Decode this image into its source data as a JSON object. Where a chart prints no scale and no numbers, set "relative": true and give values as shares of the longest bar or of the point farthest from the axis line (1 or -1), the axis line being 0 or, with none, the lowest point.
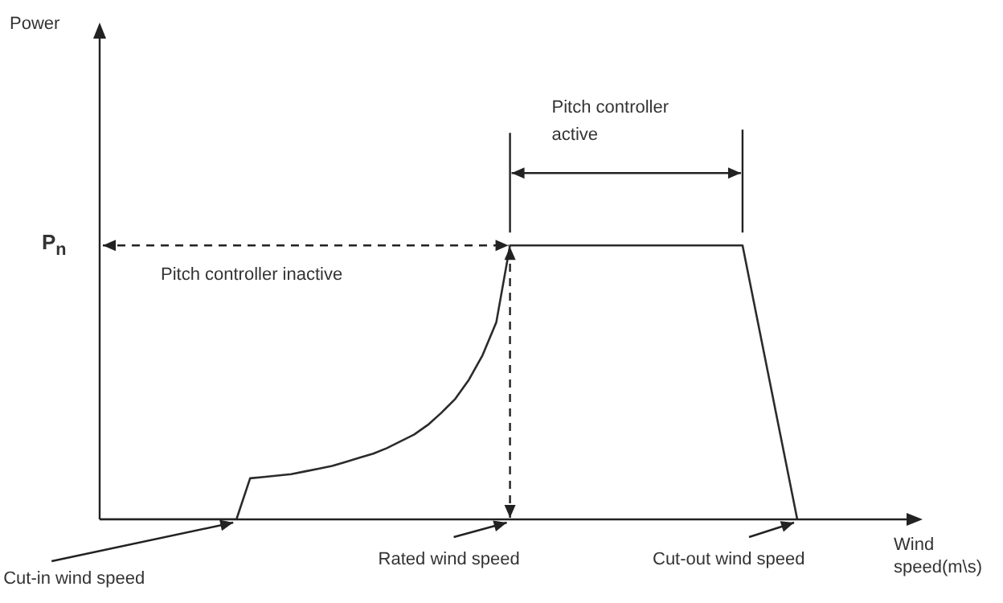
{
  "chart_data": {
    "type": "line",
    "relative": true,
    "categories": [
      null,
      null,
      null,
      null,
      null,
      null,
      null,
      null,
      null,
      null,
      null,
      null,
      null,
      null,
      null,
      null,
      null,
      null,
      null,
      null,
      null,
      null,
      null,
      null,
      null,
      null,
      null,
      null,
      null,
      null,
      null,
      null,
      null,
      null,
      null,
      null,
      null,
      null,
      null,
      null,
      null,
      null,
      null,
      null,
      null,
      null,
      null,
      null,
      null,
      null,
      null,
      null
    ],
    "values": [
      0,
      0,
      0,
      0,
      0,
      0,
      0,
      0,
      0,
      0,
      0,
      0.15,
      0.155,
      0.16,
      0.165,
      0.175,
      0.185,
      0.195,
      0.21,
      0.225,
      0.24,
      0.26,
      0.285,
      0.31,
      0.345,
      0.39,
      0.44,
      0.51,
      0.6,
      0.72,
      1,
      1,
      1,
      1,
      1,
      1,
      1,
      1,
      1,
      1,
      1,
      1,
      1,
      1,
      1,
      1,
      1,
      1,
      0.75,
      0.5,
      0.25,
      0
    ],
    "color": "#2b2b2b",
    "marker": "none",
    "line_style": "solid",
    "legend": false,
    "annotations": [
      "Pitch controller inactive",
      "Pitch controller active",
      "P$_{n}$",
      "Cut-in wind speed",
      "Rated wind speed",
      "Cut-out wind speed",
      "Power",
      "Wind speed(m\\s)"
    ]
  }
}
